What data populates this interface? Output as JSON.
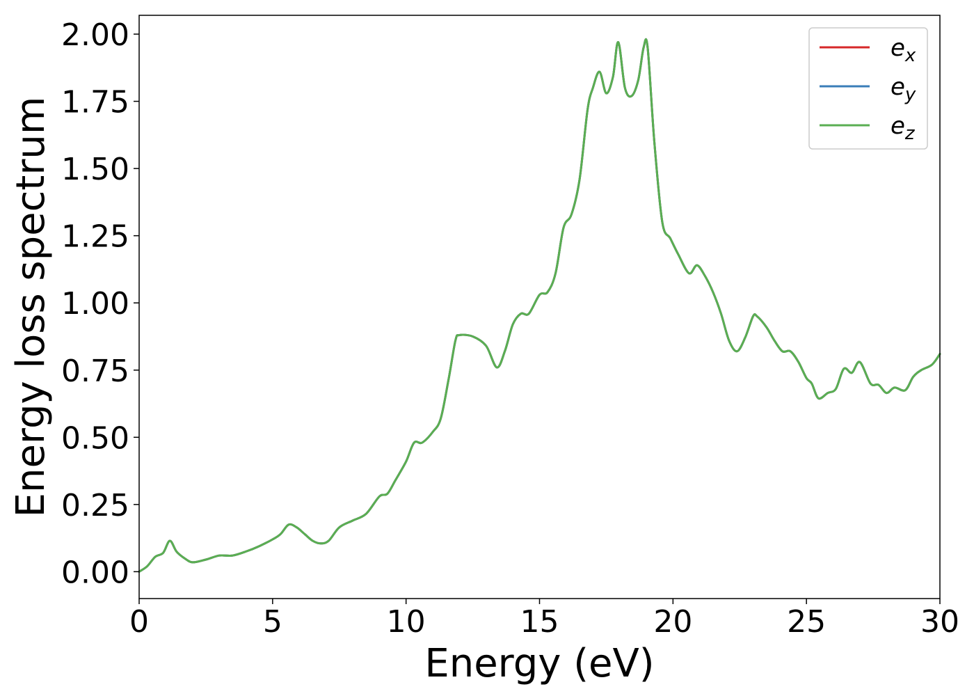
{
  "chart_data": {
    "type": "line",
    "title": "",
    "xlabel": "Energy (eV)",
    "ylabel": "Energy loss spectrum",
    "xlim": [
      0,
      30
    ],
    "ylim": [
      -0.1,
      2.07
    ],
    "xticks": [
      0,
      5,
      10,
      15,
      20,
      25,
      30
    ],
    "xtick_labels": [
      "0",
      "5",
      "10",
      "15",
      "20",
      "25",
      "30"
    ],
    "yticks": [
      0,
      0.25,
      0.5,
      0.75,
      1.0,
      1.25,
      1.5,
      1.75,
      2.0
    ],
    "ytick_labels": [
      "0.00",
      "0.25",
      "0.50",
      "0.75",
      "1.00",
      "1.25",
      "1.50",
      "1.75",
      "2.00"
    ],
    "grid": false,
    "legend_position": "top-right",
    "series": [
      {
        "name": "e_x",
        "label_base": "e",
        "label_sub": "x",
        "color": "#d62728"
      },
      {
        "name": "e_y",
        "label_base": "e",
        "label_sub": "y",
        "color": "#3a7db8"
      },
      {
        "name": "e_z",
        "label_base": "e",
        "label_sub": "z",
        "color": "#5aae52"
      }
    ],
    "x": [
      0,
      0.3,
      0.6,
      0.9,
      1.15,
      1.4,
      1.7,
      2.0,
      2.5,
      3.0,
      3.5,
      4.0,
      4.5,
      5.0,
      5.3,
      5.6,
      5.9,
      6.2,
      6.5,
      6.8,
      7.1,
      7.5,
      8.0,
      8.5,
      9.0,
      9.3,
      9.6,
      10.0,
      10.3,
      10.6,
      11.0,
      11.3,
      11.6,
      11.85,
      12.0,
      12.5,
      13.0,
      13.4,
      13.7,
      14.0,
      14.3,
      14.6,
      15.0,
      15.3,
      15.6,
      15.9,
      16.2,
      16.5,
      16.8,
      17.0,
      17.25,
      17.5,
      17.75,
      17.95,
      18.2,
      18.45,
      18.7,
      18.9,
      19.05,
      19.3,
      19.6,
      19.9,
      20.2,
      20.6,
      20.9,
      21.2,
      21.5,
      21.8,
      22.1,
      22.4,
      22.7,
      23.0,
      23.15,
      23.5,
      23.8,
      24.1,
      24.4,
      24.7,
      25.0,
      25.2,
      25.45,
      25.8,
      26.1,
      26.4,
      26.7,
      27.0,
      27.4,
      27.7,
      28.0,
      28.3,
      28.7,
      29.0,
      29.3,
      29.7,
      30.0
    ],
    "values": [
      0.0,
      0.02,
      0.055,
      0.07,
      0.115,
      0.075,
      0.05,
      0.035,
      0.045,
      0.06,
      0.06,
      0.075,
      0.095,
      0.12,
      0.14,
      0.175,
      0.165,
      0.14,
      0.115,
      0.105,
      0.115,
      0.165,
      0.19,
      0.215,
      0.28,
      0.29,
      0.34,
      0.41,
      0.48,
      0.48,
      0.52,
      0.57,
      0.72,
      0.86,
      0.88,
      0.875,
      0.84,
      0.76,
      0.82,
      0.92,
      0.96,
      0.96,
      1.03,
      1.04,
      1.11,
      1.28,
      1.33,
      1.46,
      1.72,
      1.8,
      1.86,
      1.78,
      1.84,
      1.97,
      1.8,
      1.77,
      1.83,
      1.95,
      1.95,
      1.6,
      1.3,
      1.24,
      1.18,
      1.11,
      1.14,
      1.1,
      1.04,
      0.96,
      0.86,
      0.82,
      0.87,
      0.95,
      0.95,
      0.91,
      0.86,
      0.82,
      0.82,
      0.78,
      0.72,
      0.7,
      0.645,
      0.665,
      0.68,
      0.755,
      0.74,
      0.78,
      0.7,
      0.695,
      0.665,
      0.685,
      0.675,
      0.725,
      0.75,
      0.77,
      0.81
    ]
  }
}
